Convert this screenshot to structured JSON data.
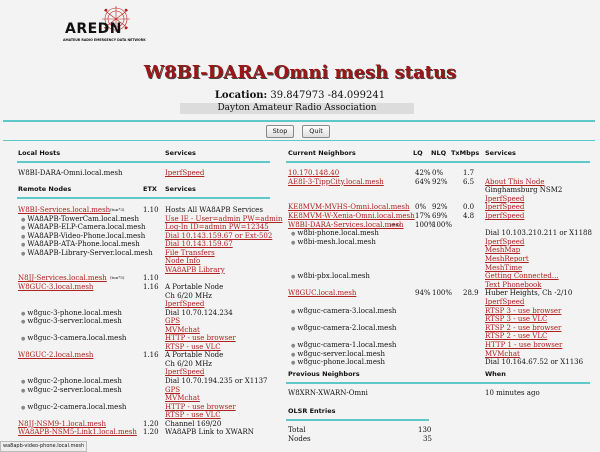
{
  "logo": {
    "text": "AREDN",
    "subtitle": "AMATEUR RADIO EMERGENCY DATA NETWORK"
  },
  "title": "W8BI-DARA-Omni mesh status",
  "location_label": "Location:",
  "location_value": "39.847973 -84.099241",
  "org": "Dayton Amateur Radio Association",
  "buttons": {
    "stop": "Stop",
    "quit": "Quit"
  },
  "local": {
    "header": "Local Hosts",
    "services_header": "Services",
    "host": "W8BI-DARA-Omni.local.mesh",
    "service": "IperfSpeed"
  },
  "remote": {
    "header": "Remote Nodes",
    "etx_header": "ETX",
    "services_header": "Services"
  },
  "remote_rows": [
    {
      "name": "W8BI-Services.local.mesh",
      "tag": "(tun*3)",
      "etx": "1.10",
      "service": "Hosts All WA8APB Services",
      "svc_link": false
    },
    {
      "name": "WA8APB-TowerCam.local.mesh",
      "sub": true,
      "service": "Use IE - User=admin PW=admin",
      "svc_link": true
    },
    {
      "name": "WA8APB-ELP-Camera.local.mesh",
      "sub": true,
      "service": "Log-In ID=admin PW=12345",
      "svc_link": true
    },
    {
      "name": "WA8APB-Video-Phone.local.mesh",
      "sub": true,
      "service": "Dial 10.143.159.67 or Ext-502",
      "svc_link": true
    },
    {
      "name": "WA8APB-ATA-Phone.local.mesh",
      "sub": true,
      "service": "Dial 10.143.159.67",
      "svc_link": true
    },
    {
      "name": "WA8APB-Library-Server.local.mesh",
      "sub": true,
      "service": "File Transfers",
      "svc_link": true
    },
    {
      "name": "",
      "sub": true,
      "service": "Node Info",
      "svc_link": true
    },
    {
      "name": "",
      "sub": true,
      "service": "WA8APB Library",
      "svc_link": true
    },
    {
      "name": "N8JJ-Services.local.mesh",
      "tag": "(tun*5)",
      "etx": "1.10",
      "service": "",
      "svc_link": false
    },
    {
      "name": "W8GUC-3.local.mesh",
      "etx": "1.16",
      "service": "A Portable Node",
      "svc_link": false
    },
    {
      "name": "",
      "service": "Ch 6/20 MHz",
      "svc_link": false
    },
    {
      "name": "",
      "service": "IperfSpeed",
      "svc_link": true
    },
    {
      "name": "w8guc-3-phone.local.mesh",
      "sub": true,
      "service": "Dial 10.70.124.234",
      "svc_link": false
    },
    {
      "name": "w8guc-3-server.local.mesh",
      "sub": true,
      "service": "GPS",
      "svc_link": true
    },
    {
      "name": "",
      "sub": true,
      "service": "MVMchat",
      "svc_link": true
    },
    {
      "name": "w8guc-3-camera.local.mesh",
      "sub": true,
      "service": "HTTP - use browser",
      "svc_link": true
    },
    {
      "name": "",
      "sub": true,
      "service": "RTSP - use VLC",
      "svc_link": true
    },
    {
      "name": "W8GUC-2.local.mesh",
      "etx": "1.16",
      "service": "A Portable Node",
      "svc_link": false
    },
    {
      "name": "",
      "service": "Ch 6/20 MHz",
      "svc_link": false
    },
    {
      "name": "",
      "service": "IperfSpeed",
      "svc_link": true
    },
    {
      "name": "w8guc-2-phone.local.mesh",
      "sub": true,
      "service": "Dial 10.70.194.235 or X1137",
      "svc_link": false
    },
    {
      "name": "w8guc-2-server.local.mesh",
      "sub": true,
      "service": "GPS",
      "svc_link": true
    },
    {
      "name": "",
      "sub": true,
      "service": "MVMchat",
      "svc_link": true
    },
    {
      "name": "w8guc-2-camera.local.mesh",
      "sub": true,
      "service": "HTTP - use browser",
      "svc_link": true
    },
    {
      "name": "",
      "sub": true,
      "service": "RTSP - use VLC",
      "svc_link": true
    },
    {
      "name": "N8JJ-NSM9-1.local.mesh",
      "etx": "1.20",
      "service": "Channel 169/20",
      "svc_link": false
    },
    {
      "name": "WA8APB-NSM5-Link1.local.mesh",
      "etx": "1.20",
      "service": "WA8APB Link to XWARN",
      "svc_link": false
    }
  ],
  "neighbors": {
    "header": "Current Neighbors",
    "lq": "LQ",
    "nlq": "NLQ",
    "tx": "TxMbps",
    "services": "Services"
  },
  "neighbor_rows": [
    {
      "name": "10.170.148.40",
      "link": true,
      "lq": "42%",
      "nlq": "0%",
      "tx": "1.7",
      "service": ""
    },
    {
      "name": "AE8I-3-TippCity.local.mesh",
      "link": true,
      "lq": "64%",
      "nlq": "92%",
      "tx": "6.5",
      "service": "About This Node",
      "svc_link": true
    },
    {
      "name": "",
      "service": "Ginghamsburg NSM2",
      "svc_link": false
    },
    {
      "name": "",
      "service": "IperfSpeed",
      "svc_link": true
    },
    {
      "name": "KE8MVM-MVHS-Omni.local.mesh",
      "link": true,
      "lq": "0%",
      "nlq": "92%",
      "tx": "0.0",
      "service": "IperfSpeed",
      "svc_link": true
    },
    {
      "name": "KE8MVM-W-Xenia-Omni.local.mesh",
      "link": true,
      "lq": "17%",
      "nlq": "69%",
      "tx": "4.8",
      "service": "IperfSpeed",
      "svc_link": true
    },
    {
      "name": "W8BI-DARA-Services.local.mesh",
      "tag": "(dtd)",
      "link": true,
      "lq": "100%",
      "nlq": "100%",
      "tx": "",
      "service": ""
    },
    {
      "name": "w8bi-phone.local.mesh",
      "sub": true,
      "service": "Dial 10.103.210.211 or X1188",
      "svc_link": false
    },
    {
      "name": "w8bi-mesh.local.mesh",
      "sub": true,
      "service": "IperfSpeed",
      "svc_link": true
    },
    {
      "name": "",
      "sub": true,
      "service": "MeshMap",
      "svc_link": true
    },
    {
      "name": "",
      "sub": true,
      "service": "MeshReport",
      "svc_link": true
    },
    {
      "name": "",
      "sub": true,
      "service": "MeshTime",
      "svc_link": true
    },
    {
      "name": "w8bi-pbx.local.mesh",
      "sub": true,
      "service": "Getting Connected...",
      "svc_link": true
    },
    {
      "name": "",
      "sub": true,
      "service": "Text Phonebook",
      "svc_link": true
    },
    {
      "name": "W8GUC.local.mesh",
      "link": true,
      "lq": "94%",
      "nlq": "100%",
      "tx": "28.9",
      "service": "Huber Heights, Ch -2/10",
      "svc_link": false
    },
    {
      "name": "",
      "service": "IperfSpeed",
      "svc_link": true
    },
    {
      "name": "w8guc-camera-3.local.mesh",
      "sub": true,
      "service": "RTSP 3 - use browser",
      "svc_link": true
    },
    {
      "name": "",
      "sub": true,
      "service": "RTSP 3 - use VLC",
      "svc_link": true
    },
    {
      "name": "w8guc-camera-2.local.mesh",
      "sub": true,
      "service": "RTSP 2 - use browser",
      "svc_link": true
    },
    {
      "name": "",
      "sub": true,
      "service": "RTSP 2 - use VLC",
      "svc_link": true
    },
    {
      "name": "w8guc-camera-1.local.mesh",
      "sub": true,
      "service": "HTTP 1 - use browser",
      "svc_link": true
    },
    {
      "name": "w8guc-server.local.mesh",
      "sub": true,
      "service": "MVMchat",
      "svc_link": true
    },
    {
      "name": "w8guc-phone.local.mesh",
      "sub": true,
      "service": "Dial 10.164.67.52 or X1136",
      "svc_link": false
    }
  ],
  "previous": {
    "header": "Previous Neighbors",
    "when_header": "When",
    "name": "W8XRN-XWARN-Omni",
    "when": "10 minutes ago"
  },
  "olsr": {
    "header": "OLSR Entries",
    "total_label": "Total",
    "total": "130",
    "nodes_label": "Nodes",
    "nodes": "35"
  },
  "statusbar": "wa8apb-video-phone.local.mesh",
  "colors": {
    "accent": "#5ec8c8",
    "title": "#9b1616",
    "link": "#b0221f"
  }
}
